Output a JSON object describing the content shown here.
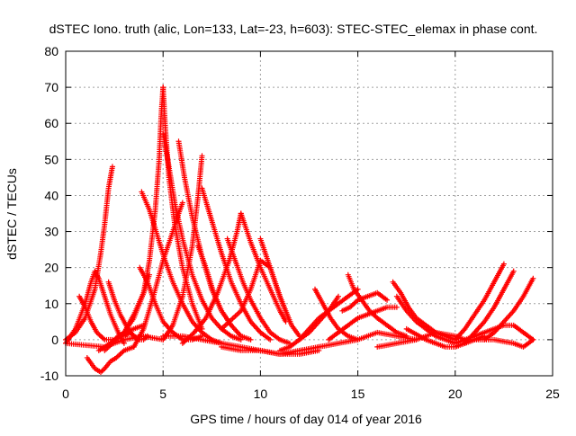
{
  "chart_data": {
    "type": "scatter",
    "title": "dSTEC Iono. truth (alic, Lon=133, Lat=-23, h=603): STEC-STEC_elemax in phase cont.",
    "xlabel": "GPS time / hours of day 014 of year 2016",
    "ylabel": "dSTEC  / TECUs",
    "xlim": [
      0,
      25
    ],
    "ylim": [
      -10,
      80
    ],
    "xticks": [
      0,
      5,
      10,
      15,
      20,
      25
    ],
    "yticks": [
      -10,
      0,
      10,
      20,
      30,
      40,
      50,
      60,
      70,
      80
    ],
    "xtick_labels": [
      "0",
      "5",
      "10",
      "15",
      "20",
      "25"
    ],
    "ytick_labels": [
      "-10",
      "0",
      "10",
      "20",
      "30",
      "40",
      "50",
      "60",
      "70",
      "80"
    ],
    "grid": true,
    "marker": "+",
    "series_color": "#ff0000",
    "series": [
      {
        "x": [
          0.0,
          0.5,
          1.0,
          1.5,
          1.8,
          2.0,
          2.2,
          2.4
        ],
        "y": [
          0,
          2,
          6,
          14,
          24,
          32,
          42,
          48
        ]
      },
      {
        "x": [
          0.0,
          0.5,
          1.0,
          1.3,
          1.5,
          1.7,
          2.0,
          2.3,
          2.7,
          3.0
        ],
        "y": [
          -1,
          3,
          10,
          16,
          19,
          17,
          12,
          7,
          2,
          -1
        ]
      },
      {
        "x": [
          0.7,
          1.0,
          1.3,
          1.6,
          2.0,
          2.5,
          3.0,
          3.5,
          4.0
        ],
        "y": [
          12,
          9,
          5,
          2,
          0,
          0,
          2,
          3,
          4
        ]
      },
      {
        "x": [
          1.1,
          1.5,
          1.8,
          2.0,
          2.3,
          2.6,
          3.0,
          3.5
        ],
        "y": [
          -5,
          -8,
          -9,
          -8,
          -6,
          -5,
          -3,
          -2
        ]
      },
      {
        "x": [
          1.7,
          2.0,
          2.3,
          2.7,
          3.0,
          3.3,
          3.7
        ],
        "y": [
          -3,
          -2,
          -1,
          1,
          1,
          2,
          0
        ]
      },
      {
        "x": [
          2.2,
          2.5,
          2.8,
          3.2,
          3.5,
          3.8,
          4.0,
          4.2
        ],
        "y": [
          16,
          11,
          7,
          3,
          1,
          0,
          0,
          1
        ]
      },
      {
        "x": [
          2.0,
          3.0,
          3.5,
          4.0,
          4.3
        ],
        "y": [
          -3,
          2,
          7,
          13,
          18
        ]
      },
      {
        "x": [
          3.8,
          4.2,
          4.6,
          5.0,
          5.5,
          6.0,
          6.5,
          7.0
        ],
        "y": [
          20,
          16,
          10,
          5,
          2,
          0,
          0,
          1
        ]
      },
      {
        "x": [
          3.9,
          4.3,
          4.7,
          5.1,
          5.5,
          6.0,
          6.5,
          7.0,
          7.5,
          8.0
        ],
        "y": [
          41,
          36,
          29,
          22,
          16,
          10,
          5,
          2,
          0,
          -1
        ]
      },
      {
        "x": [
          3.0,
          3.5,
          4.0,
          4.3,
          4.6,
          4.8,
          4.9,
          5.0
        ],
        "y": [
          2,
          6,
          13,
          22,
          36,
          50,
          62,
          70
        ]
      },
      {
        "x": [
          5.0,
          5.1,
          5.3,
          5.6,
          6.0,
          6.5,
          7.0
        ],
        "y": [
          70,
          60,
          45,
          32,
          20,
          10,
          3
        ]
      },
      {
        "x": [
          3.5,
          4.0,
          4.5,
          5.0,
          5.5,
          5.8,
          6.0
        ],
        "y": [
          -2,
          3,
          12,
          22,
          30,
          35,
          38
        ]
      },
      {
        "x": [
          5.0,
          5.3,
          5.6,
          6.0,
          6.5,
          7.0,
          7.5,
          8.0,
          8.5,
          9.0
        ],
        "y": [
          57,
          48,
          38,
          28,
          18,
          11,
          6,
          3,
          1,
          0
        ]
      },
      {
        "x": [
          5.8,
          6.1,
          6.5,
          7.0,
          7.5,
          8.0,
          8.5
        ],
        "y": [
          55,
          45,
          34,
          23,
          14,
          8,
          4
        ]
      },
      {
        "x": [
          5.0,
          5.5,
          6.0,
          6.5,
          6.8,
          7.0
        ],
        "y": [
          0,
          4,
          12,
          26,
          40,
          51
        ]
      },
      {
        "x": [
          6.8,
          7.2,
          7.6,
          8.0,
          8.5,
          9.0,
          9.5
        ],
        "y": [
          26,
          20,
          13,
          8,
          4,
          1,
          0
        ]
      },
      {
        "x": [
          7.0,
          7.5,
          8.0,
          8.5,
          9.0,
          9.5,
          10.0,
          10.5
        ],
        "y": [
          42,
          33,
          24,
          16,
          10,
          5,
          2,
          0
        ]
      },
      {
        "x": [
          6.0,
          6.6,
          7.2,
          7.8,
          8.4,
          8.8,
          9.0
        ],
        "y": [
          -1,
          2,
          6,
          13,
          22,
          30,
          35
        ]
      },
      {
        "x": [
          8.3,
          8.7,
          9.1,
          9.5,
          10.0,
          10.5,
          11.0,
          11.5
        ],
        "y": [
          28,
          22,
          16,
          11,
          6,
          2,
          0,
          -1
        ]
      },
      {
        "x": [
          9.0,
          9.5,
          10.0,
          10.5,
          11.0,
          11.3
        ],
        "y": [
          35,
          27,
          20,
          14,
          8,
          5
        ]
      },
      {
        "x": [
          8.0,
          9.0,
          9.5,
          10.0,
          10.5,
          11.0,
          11.5
        ],
        "y": [
          3,
          8,
          14,
          22,
          20,
          12,
          5
        ]
      },
      {
        "x": [
          10.0,
          10.5,
          11.0,
          11.3,
          11.6,
          12.0
        ],
        "y": [
          28,
          20,
          12,
          8,
          4,
          1
        ]
      },
      {
        "x": [
          5.0,
          6.0,
          7.0,
          8.0,
          9.0,
          10.0,
          11.0,
          12.0,
          13.0
        ],
        "y": [
          1,
          1,
          0,
          -1,
          -2,
          -3,
          -4,
          -4,
          -3
        ]
      },
      {
        "x": [
          0.0,
          2.0,
          3.0,
          4.0,
          5.0
        ],
        "y": [
          -1,
          -2,
          0,
          1,
          0
        ]
      },
      {
        "x": [
          8.0,
          9.0,
          10.0,
          11.0,
          12.0,
          13.0
        ],
        "y": [
          -2,
          -3,
          -3,
          -4,
          -3,
          -2
        ]
      },
      {
        "x": [
          11.0,
          11.5,
          12.0,
          12.5,
          13.0,
          13.5,
          14.0
        ],
        "y": [
          -3,
          -2,
          0,
          2,
          5,
          8,
          12
        ]
      },
      {
        "x": [
          12.0,
          12.5,
          13.0,
          13.5,
          14.0,
          14.5,
          15.0
        ],
        "y": [
          0,
          3,
          6,
          8,
          10,
          12,
          14
        ]
      },
      {
        "x": [
          12.8,
          13.2,
          13.6,
          14.0,
          14.5,
          15.0
        ],
        "y": [
          14,
          10,
          6,
          3,
          1,
          0
        ]
      },
      {
        "x": [
          14.5,
          14.8,
          15.2,
          15.6,
          16.0,
          16.5,
          17.0,
          17.5
        ],
        "y": [
          18,
          14,
          11,
          8,
          6,
          4,
          2,
          1
        ]
      },
      {
        "x": [
          14.2,
          14.6,
          15.0,
          15.5,
          16.0,
          16.5
        ],
        "y": [
          8,
          9,
          11,
          12,
          13,
          11
        ]
      },
      {
        "x": [
          13.5,
          14.0,
          14.5,
          15.0,
          15.5,
          16.0,
          16.5,
          17.0
        ],
        "y": [
          0,
          2,
          4,
          6,
          7,
          8,
          9,
          9
        ]
      },
      {
        "x": [
          13.0,
          14.0,
          15.0,
          16.0,
          17.0,
          18.0
        ],
        "y": [
          -2,
          -1,
          0,
          2,
          1,
          0
        ]
      },
      {
        "x": [
          16.8,
          17.2,
          17.6,
          18.0,
          18.5,
          19.0,
          19.5,
          20.0
        ],
        "y": [
          16,
          13,
          9,
          6,
          4,
          2,
          1,
          0
        ]
      },
      {
        "x": [
          17.0,
          17.5,
          18.0,
          18.5,
          19.0,
          19.5,
          20.0
        ],
        "y": [
          12,
          8,
          5,
          3,
          1,
          0,
          -1
        ]
      },
      {
        "x": [
          16.0,
          17.0,
          18.0,
          19.0,
          20.0,
          20.5
        ],
        "y": [
          -2,
          -1,
          0,
          2,
          1,
          0
        ]
      },
      {
        "x": [
          17.5,
          18.5,
          19.0,
          19.5,
          20.0,
          20.5,
          21.0,
          21.5
        ],
        "y": [
          3,
          0,
          -1,
          -2,
          -2,
          -1,
          0,
          1
        ]
      },
      {
        "x": [
          20.0,
          20.5,
          21.0,
          21.5,
          22.0,
          22.5
        ],
        "y": [
          0,
          3,
          7,
          11,
          16,
          21
        ]
      },
      {
        "x": [
          20.5,
          21.0,
          21.5,
          22.0,
          22.5,
          23.0
        ],
        "y": [
          -1,
          2,
          5,
          9,
          14,
          19
        ]
      },
      {
        "x": [
          21.5,
          22.0,
          22.5,
          23.0,
          23.5,
          24.0
        ],
        "y": [
          0,
          2,
          5,
          8,
          12,
          17
        ]
      },
      {
        "x": [
          20.0,
          20.5,
          21.0,
          21.5,
          22.0,
          22.5,
          23.0,
          23.5,
          24.0
        ],
        "y": [
          -1,
          0,
          1,
          2,
          3,
          4,
          4,
          2,
          0
        ]
      },
      {
        "x": [
          21.0,
          22.0,
          23.0,
          23.5,
          24.0
        ],
        "y": [
          0,
          0,
          -1,
          -2,
          0
        ]
      }
    ]
  }
}
